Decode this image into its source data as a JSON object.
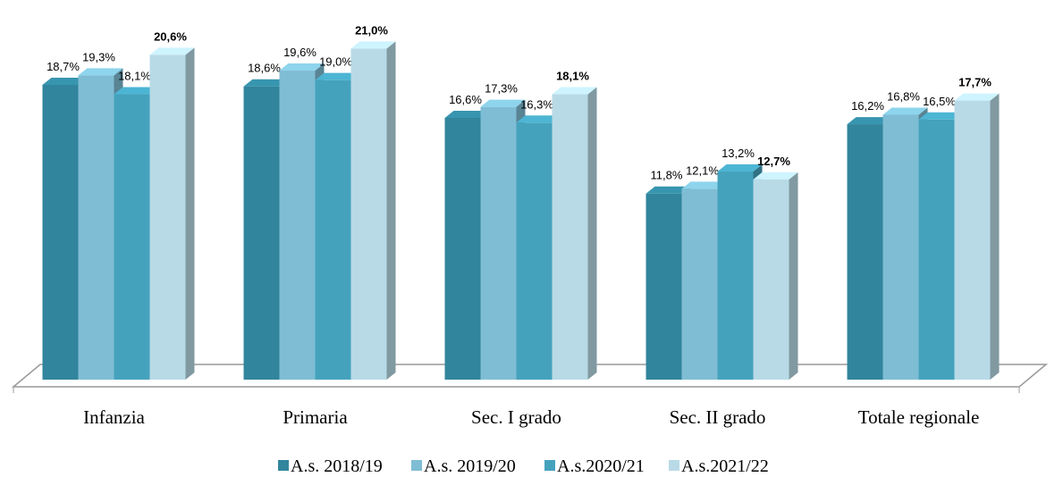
{
  "chart_data": {
    "type": "bar3d",
    "categories": [
      "Infanzia",
      "Primaria",
      "Sec. I grado",
      "Sec. II grado",
      "Totale regionale"
    ],
    "series": [
      {
        "name": "A.s. 2018/19",
        "color": "#31859c",
        "values": [
          18.7,
          18.6,
          16.6,
          11.8,
          16.2
        ],
        "value_labels": [
          "18,7%",
          "18,6%",
          "16,6%",
          "11,8%",
          "16,2%"
        ]
      },
      {
        "name": "A.s. 2019/20",
        "color": "#7fbdd4",
        "values": [
          19.3,
          19.6,
          17.3,
          12.1,
          16.8
        ],
        "value_labels": [
          "19,3%",
          "19,6%",
          "17,3%",
          "12,1%",
          "16,8%"
        ]
      },
      {
        "name": "A.s.2020/21",
        "color": "#45a2bd",
        "values": [
          18.1,
          19.0,
          16.3,
          13.2,
          16.5
        ],
        "value_labels": [
          "18,1%",
          "19,0%",
          "16,3%",
          "13,2%",
          "16,5%"
        ]
      },
      {
        "name": "A.s.2021/22",
        "color": "#b8dae6",
        "values": [
          20.6,
          21.0,
          18.1,
          12.7,
          17.7
        ],
        "value_labels": [
          "20,6%",
          "21,0%",
          "18,1%",
          "12,7%",
          "17,7%"
        ]
      }
    ]
  }
}
